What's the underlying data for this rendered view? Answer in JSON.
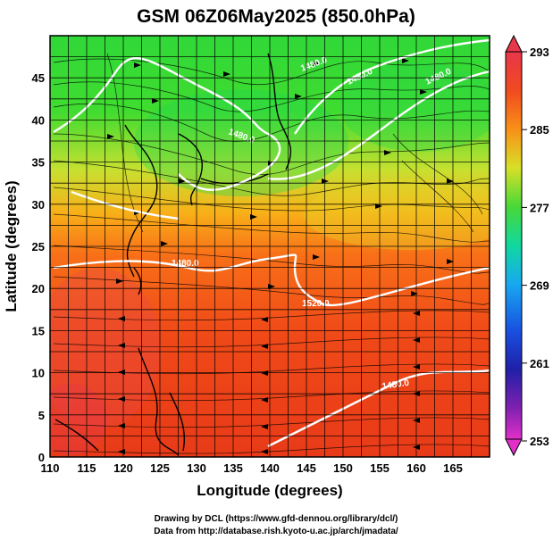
{
  "title": "GSM 06Z06May2025 (850.0hPa)",
  "xlabel": "Longitude (degrees)",
  "ylabel": "Latitude  (degrees)",
  "x_ticks": [
    "110",
    "115",
    "120",
    "125",
    "130",
    "135",
    "140",
    "145",
    "150",
    "155",
    "160",
    "165"
  ],
  "y_ticks": [
    "45",
    "40",
    "35",
    "30",
    "25",
    "20",
    "15",
    "10",
    "5",
    "0"
  ],
  "colorbar": {
    "ticks": [
      "293",
      "285",
      "277",
      "269",
      "261",
      "253"
    ],
    "colors": [
      "#e8364a",
      "#f04a20",
      "#f89018",
      "#c8e030",
      "#30d838",
      "#10d8a8",
      "#18a8f0",
      "#1840e0",
      "#2020a0",
      "#a020a8",
      "#e030c8"
    ]
  },
  "contour_labels": [
    "1480.0",
    "1480.0",
    "1480.0",
    "1480.0",
    "1480.0",
    "1520.0",
    "1480.0"
  ],
  "credits": {
    "line1": "Drawing by DCL (https://www.gfd-dennou.org/library/dcl/)",
    "line2": "Data from http://database.rish.kyoto-u.ac.jp/arch/jmadata/"
  },
  "chart_data": {
    "type": "heatmap",
    "variable": "temperature with streamlines and geopotential height contours",
    "xlim": [
      110,
      170
    ],
    "ylim": [
      0,
      50
    ],
    "color_range": [
      253,
      293
    ],
    "contour_levels": [
      1480.0,
      1520.0
    ]
  }
}
